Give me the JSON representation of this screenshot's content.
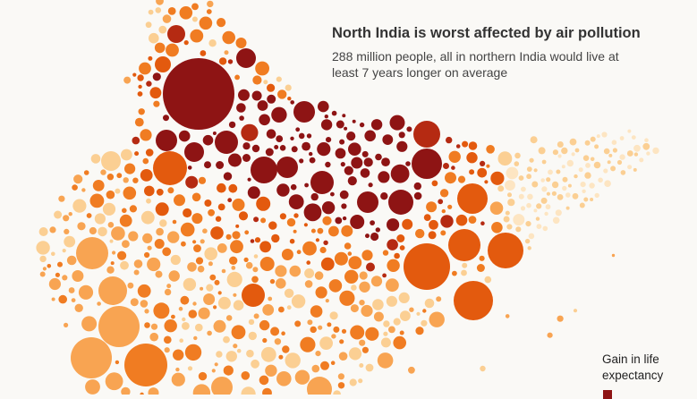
{
  "title": "North India is worst affected by air pollution",
  "subtitle": "288 million people, all in northern India would live at least 7 years longer on average",
  "legend": {
    "title": "Gain in life expectancy"
  },
  "colors": {
    "background": "#faf9f6",
    "darkest": "#8e1414",
    "dark": "#b52a12",
    "orange_dark": "#e35a0e",
    "orange": "#f07c22",
    "orange_light": "#f8a452",
    "pale": "#fbcf93",
    "palest": "#fde5c2"
  }
}
